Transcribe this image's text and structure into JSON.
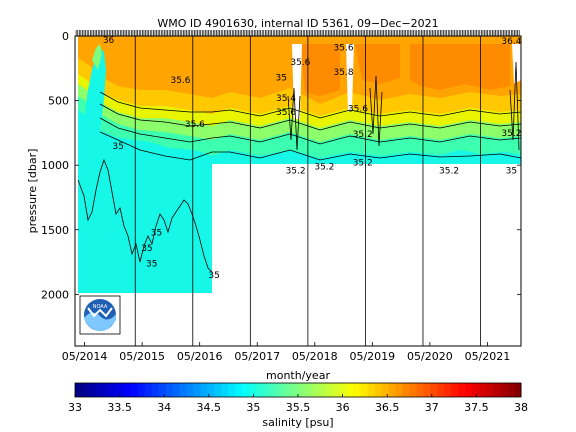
{
  "chart_data": {
    "type": "heatmap",
    "title": "WMO ID 4901630, internal ID 5361, 09−Dec−2021",
    "xlabel": "month/year",
    "ylabel": "pressure [dbar]",
    "colorbar_label": "salinity [psu]",
    "x_range": [
      "2014-05",
      "2021-11"
    ],
    "ylim": [
      2400,
      0
    ],
    "x_ticks": [
      "05/2014",
      "05/2015",
      "05/2016",
      "05/2017",
      "05/2018",
      "05/2019",
      "05/2020",
      "05/2021"
    ],
    "y_ticks": [
      0,
      500,
      1000,
      1500,
      2000
    ],
    "color_scale": {
      "min": 33,
      "max": 38,
      "ticks": [
        33,
        33.5,
        34,
        34.5,
        35,
        35.5,
        36,
        36.5,
        37,
        37.5,
        38
      ],
      "colormap": "jet"
    },
    "yearly_markers": [
      "05/2015",
      "05/2016",
      "05/2017",
      "05/2018",
      "05/2019",
      "05/2020",
      "05/2021"
    ],
    "max_profile_depth": [
      {
        "period": "05/2014 to 09/2016",
        "pressure": 2000
      },
      {
        "period": "09/2016 to 11/2021",
        "pressure": 1000
      }
    ],
    "contour_labels": [
      {
        "text": "36",
        "date": "2014-10",
        "pressure": 30
      },
      {
        "text": "35",
        "date": "2014-12",
        "pressure": 850
      },
      {
        "text": "35.6",
        "date": "2016-01",
        "pressure": 340
      },
      {
        "text": "35.6",
        "date": "2016-04",
        "pressure": 680
      },
      {
        "text": "35",
        "date": "2015-08",
        "pressure": 1520
      },
      {
        "text": "35",
        "date": "2015-06",
        "pressure": 1640
      },
      {
        "text": "35",
        "date": "2015-07",
        "pressure": 1760
      },
      {
        "text": "35",
        "date": "2016-08",
        "pressure": 1850
      },
      {
        "text": "35",
        "date": "2017-10",
        "pressure": 320
      },
      {
        "text": "35.4",
        "date": "2017-11",
        "pressure": 480
      },
      {
        "text": "35.6",
        "date": "2017-11",
        "pressure": 590
      },
      {
        "text": "35.2",
        "date": "2018-01",
        "pressure": 1040
      },
      {
        "text": "35.6",
        "date": "2018-02",
        "pressure": 200
      },
      {
        "text": "35.6",
        "date": "2018-11",
        "pressure": 90
      },
      {
        "text": "35.8",
        "date": "2018-11",
        "pressure": 280
      },
      {
        "text": "35.2",
        "date": "2018-07",
        "pressure": 1010
      },
      {
        "text": "35.2",
        "date": "2019-03",
        "pressure": 760
      },
      {
        "text": "35.6",
        "date": "2019-02",
        "pressure": 560
      },
      {
        "text": "35.2",
        "date": "2019-03",
        "pressure": 980
      },
      {
        "text": "35.2",
        "date": "2020-09",
        "pressure": 1040
      },
      {
        "text": "35",
        "date": "2021-10",
        "pressure": 1040
      },
      {
        "text": "36.4",
        "date": "2021-10",
        "pressure": 40
      },
      {
        "text": "35.2",
        "date": "2021-10",
        "pressure": 750
      }
    ],
    "logo": "noaa-logo"
  }
}
